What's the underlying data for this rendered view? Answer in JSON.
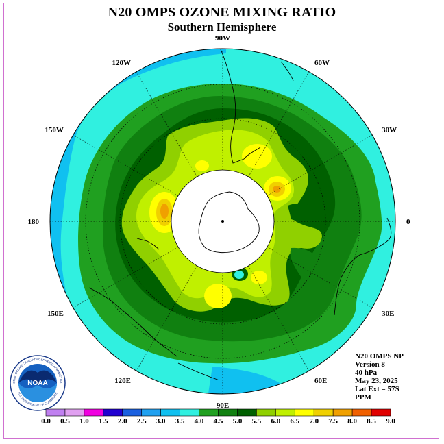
{
  "header": {
    "title": "N20 OMPS OZONE MIXING RATIO",
    "subtitle": "Southern Hemisphere"
  },
  "map": {
    "projection": "polar-stereographic-south",
    "longitude_labels": [
      {
        "id": "90w",
        "text": "90W",
        "lon": -90
      },
      {
        "id": "60w",
        "text": "60W",
        "lon": -60
      },
      {
        "id": "30w",
        "text": "30W",
        "lon": -30
      },
      {
        "id": "0",
        "text": "0",
        "lon": 0
      },
      {
        "id": "30e",
        "text": "30E",
        "lon": 30
      },
      {
        "id": "60e",
        "text": "60E",
        "lon": 60
      },
      {
        "id": "90e",
        "text": "90E",
        "lon": 90
      },
      {
        "id": "120e",
        "text": "120E",
        "lon": 120
      },
      {
        "id": "150e",
        "text": "150E",
        "lon": 150
      },
      {
        "id": "180",
        "text": "180",
        "lon": 180
      },
      {
        "id": "150w",
        "text": "150W",
        "lon": -150
      },
      {
        "id": "120w",
        "text": "120W",
        "lon": -120
      }
    ],
    "polar_mask": "no data"
  },
  "info": {
    "instrument": "N20 OMPS NP",
    "version": "Version 8",
    "level": "40 hPa",
    "date": "May 23, 2025",
    "lat_ext": "Lat Ext = 57S",
    "units": "PPM"
  },
  "colorbar": {
    "ticks": [
      "0.0",
      "0.5",
      "1.0",
      "1.5",
      "2.0",
      "2.5",
      "3.0",
      "3.5",
      "4.0",
      "4.5",
      "5.0",
      "5.5",
      "6.0",
      "6.5",
      "7.0",
      "7.5",
      "8.0",
      "8.5",
      "9.0"
    ],
    "colors": [
      "#c080f0",
      "#e0a0f0",
      "#f000e0",
      "#2000d0",
      "#1a60e0",
      "#20a0f0",
      "#10c0f0",
      "#30f0e0",
      "#20a020",
      "#108010",
      "#006000",
      "#90d000",
      "#c0f000",
      "#ffff00",
      "#f0d000",
      "#f0a000",
      "#f06000",
      "#e00000",
      "#906040"
    ]
  },
  "logo": {
    "text": "NOAA",
    "ring_text_top": "NATIONAL OCEANIC AND ATMOSPHERIC ADMINISTRATION",
    "ring_text_bottom": "U.S. DEPARTMENT OF COMMERCE"
  }
}
